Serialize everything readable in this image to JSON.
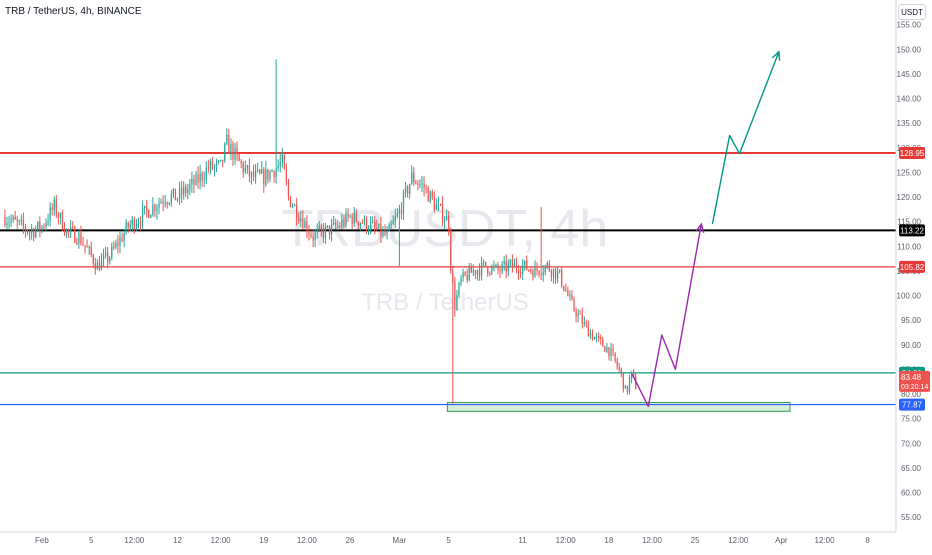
{
  "header": {
    "title": "TRB / TetherUS, 4h, BINANCE",
    "currency": "USDT"
  },
  "watermark": {
    "symbol": "TRBUSDT, 4h",
    "name": "TRB / TetherUS"
  },
  "colors": {
    "up": "#26a69a",
    "down": "#ef5350",
    "resistance": "#e53935",
    "pivot": "#000000",
    "support_green": "#089981",
    "support_blue": "#2962ff",
    "projection_purple": "#9c27b0",
    "projection_teal": "#009688",
    "zone_fill": "#c8e6c9"
  },
  "chart_data": {
    "type": "candlestick",
    "title": "TRB / TetherUS, 4h, BINANCE",
    "ylim": [
      52,
      160
    ],
    "y_ticks": [
      "155.00",
      "150.00",
      "145.00",
      "140.00",
      "135.00",
      "130.00",
      "125.00",
      "120.00",
      "115.00",
      "110.00",
      "105.00",
      "100.00",
      "95.00",
      "90.00",
      "85.00",
      "80.00",
      "75.00",
      "70.00",
      "65.00",
      "60.00",
      "55.00"
    ],
    "x_ticks": [
      {
        "label": "Feb",
        "day": 1
      },
      {
        "label": "5",
        "day": 5
      },
      {
        "label": "12:00",
        "day": 8.5
      },
      {
        "label": "12",
        "day": 12
      },
      {
        "label": "12:00",
        "day": 15.5
      },
      {
        "label": "19",
        "day": 19
      },
      {
        "label": "12:00",
        "day": 22.5
      },
      {
        "label": "26",
        "day": 26
      },
      {
        "label": "Mar",
        "day": 30
      },
      {
        "label": "5",
        "day": 34
      },
      {
        "label": "11",
        "day": 40
      },
      {
        "label": "12:00",
        "day": 43.5
      },
      {
        "label": "18",
        "day": 47
      },
      {
        "label": "12:00",
        "day": 50.5
      },
      {
        "label": "25",
        "day": 54
      },
      {
        "label": "12:00",
        "day": 57.5
      },
      {
        "label": "Apr",
        "day": 61
      },
      {
        "label": "12:00",
        "day": 64.5
      },
      {
        "label": "8",
        "day": 68
      }
    ],
    "anchors": [
      [
        -2,
        116
      ],
      [
        0,
        113
      ],
      [
        1,
        114
      ],
      [
        2,
        118
      ],
      [
        3,
        113
      ],
      [
        4,
        112
      ],
      [
        5.5,
        106
      ],
      [
        6.5,
        108
      ],
      [
        8,
        114
      ],
      [
        9,
        116
      ],
      [
        10,
        118
      ],
      [
        11,
        120
      ],
      [
        12,
        120
      ],
      [
        13.5,
        123
      ],
      [
        14.5,
        126
      ],
      [
        15.5,
        126
      ],
      [
        16,
        131
      ],
      [
        17,
        127
      ],
      [
        18,
        124
      ],
      [
        19,
        124
      ],
      [
        20,
        126
      ],
      [
        20.5,
        127
      ],
      [
        21,
        120
      ],
      [
        22,
        116
      ],
      [
        23,
        112
      ],
      [
        24,
        113
      ],
      [
        25,
        114
      ],
      [
        26,
        116
      ],
      [
        27,
        115
      ],
      [
        29,
        112
      ],
      [
        30,
        117
      ],
      [
        31,
        124
      ],
      [
        32,
        122
      ],
      [
        33,
        118
      ],
      [
        34,
        115
      ],
      [
        34.2,
        105
      ],
      [
        34.5,
        98
      ],
      [
        35,
        103
      ],
      [
        36,
        105
      ],
      [
        37,
        106
      ],
      [
        38,
        105
      ],
      [
        39,
        106
      ],
      [
        40,
        106
      ],
      [
        41,
        105
      ],
      [
        42,
        106
      ],
      [
        43,
        104
      ],
      [
        44,
        98
      ],
      [
        45,
        94
      ],
      [
        46,
        91
      ],
      [
        47,
        89
      ],
      [
        48,
        84
      ],
      [
        48.4,
        80
      ],
      [
        48.8,
        84
      ],
      [
        49.3,
        81
      ]
    ],
    "levels": [
      {
        "name": "resistance",
        "value": 128.95,
        "label": "128.95"
      },
      {
        "name": "pivot",
        "value": 113.22,
        "label": "113.22"
      },
      {
        "name": "resistance-2",
        "value": 105.82,
        "label": "105.82"
      },
      {
        "name": "support-green",
        "value": 84.31,
        "label": "84.31"
      },
      {
        "name": "support-blue",
        "value": 77.87,
        "label": "77.87"
      }
    ],
    "last_price": {
      "value": 83.48,
      "label": "83.48",
      "countdown": "03:20:14"
    },
    "demand_zone": {
      "day_from": 33.9,
      "day_to": 61.7,
      "y_from": 76.5,
      "y_to": 78.3
    },
    "projection_purple": [
      [
        48.9,
        84
      ],
      [
        50.2,
        77.5
      ],
      [
        51.3,
        92
      ],
      [
        52.4,
        85
      ],
      [
        54.5,
        114.5
      ]
    ],
    "projection_teal": [
      [
        55.4,
        114.5
      ],
      [
        56.8,
        132.5
      ],
      [
        57.6,
        128.8
      ],
      [
        60.8,
        149.5
      ]
    ]
  }
}
